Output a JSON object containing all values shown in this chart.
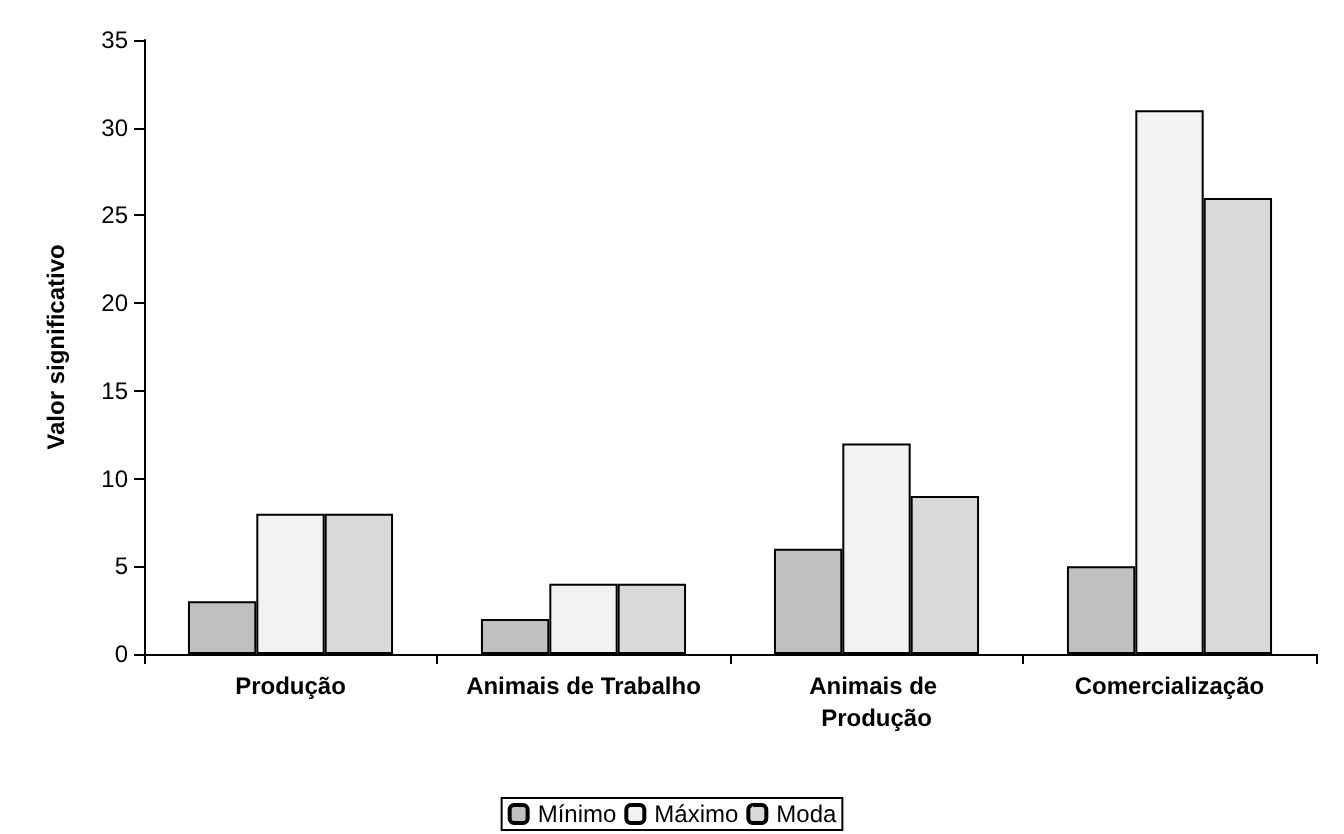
{
  "chart_data": {
    "type": "bar",
    "ylabel": "Valor significativo",
    "categories": [
      "Produção",
      "Animais de Trabalho",
      "Animais de Produção",
      "Comercialização"
    ],
    "series": [
      {
        "name": "Mínimo",
        "color": "#c0c0c0",
        "values": [
          3,
          2,
          6,
          5
        ]
      },
      {
        "name": "Máximo",
        "color": "#f2f2f2",
        "values": [
          8,
          4,
          12,
          31
        ]
      },
      {
        "name": "Moda",
        "color": "#d9d9d9",
        "values": [
          8,
          4,
          9,
          26
        ]
      }
    ],
    "ylim": [
      0,
      35
    ],
    "yticks": [
      0,
      5,
      10,
      15,
      20,
      25,
      30,
      35
    ],
    "grid": false,
    "legend": "bottom"
  }
}
